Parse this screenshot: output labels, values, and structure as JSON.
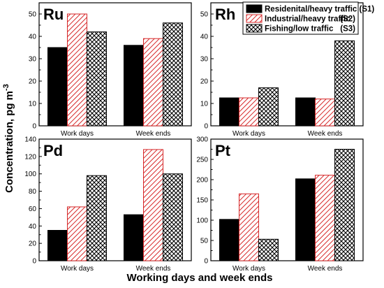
{
  "figure": {
    "ylabel_text": "Concentration, pg m",
    "ylabel_superscript": "-3",
    "xlabel": "Working days and week ends"
  },
  "legend": {
    "position": "top-right",
    "entries": [
      {
        "label": "Residenital/heavy traffic (S1)",
        "color": "#000000",
        "pattern": "solid"
      },
      {
        "label": "Industrial/heavy traffic",
        "code": "(S2)",
        "color": "#d62728",
        "pattern": "diagonal-hatch"
      },
      {
        "label": "Fishing/low traffic",
        "code": "(S3)",
        "color": "#000000",
        "pattern": "crosshatch"
      }
    ]
  },
  "chart_data": [
    {
      "type": "bar",
      "label": "Ru",
      "categories": [
        "Work days",
        "Week ends"
      ],
      "series": [
        {
          "values": [
            35,
            36
          ]
        },
        {
          "values": [
            50,
            39
          ]
        },
        {
          "values": [
            42,
            46
          ]
        }
      ],
      "ylim": [
        0,
        55
      ],
      "yticks": [
        0,
        10,
        20,
        30,
        40,
        50
      ]
    },
    {
      "type": "bar",
      "label": "Rh",
      "categories": [
        "Work days",
        "Week ends"
      ],
      "series": [
        {
          "values": [
            12.5,
            12.5
          ]
        },
        {
          "values": [
            12.5,
            12
          ]
        },
        {
          "values": [
            17,
            38
          ]
        }
      ],
      "ylim": [
        0,
        55
      ],
      "yticks": [
        0,
        10,
        20,
        30,
        40,
        50
      ]
    },
    {
      "type": "bar",
      "label": "Pd",
      "categories": [
        "Work days",
        "Week ends"
      ],
      "series": [
        {
          "values": [
            35,
            53
          ]
        },
        {
          "values": [
            62,
            128
          ]
        },
        {
          "values": [
            98,
            100
          ]
        }
      ],
      "ylim": [
        0,
        140
      ],
      "yticks": [
        0,
        20,
        40,
        60,
        80,
        100,
        120,
        140
      ]
    },
    {
      "type": "bar",
      "label": "Pt",
      "categories": [
        "Work days",
        "Week ends"
      ],
      "series": [
        {
          "values": [
            102,
            202
          ]
        },
        {
          "values": [
            165,
            211
          ]
        },
        {
          "values": [
            53,
            275
          ]
        }
      ],
      "ylim": [
        0,
        300
      ],
      "yticks": [
        0,
        50,
        100,
        150,
        200,
        250,
        300
      ]
    }
  ]
}
